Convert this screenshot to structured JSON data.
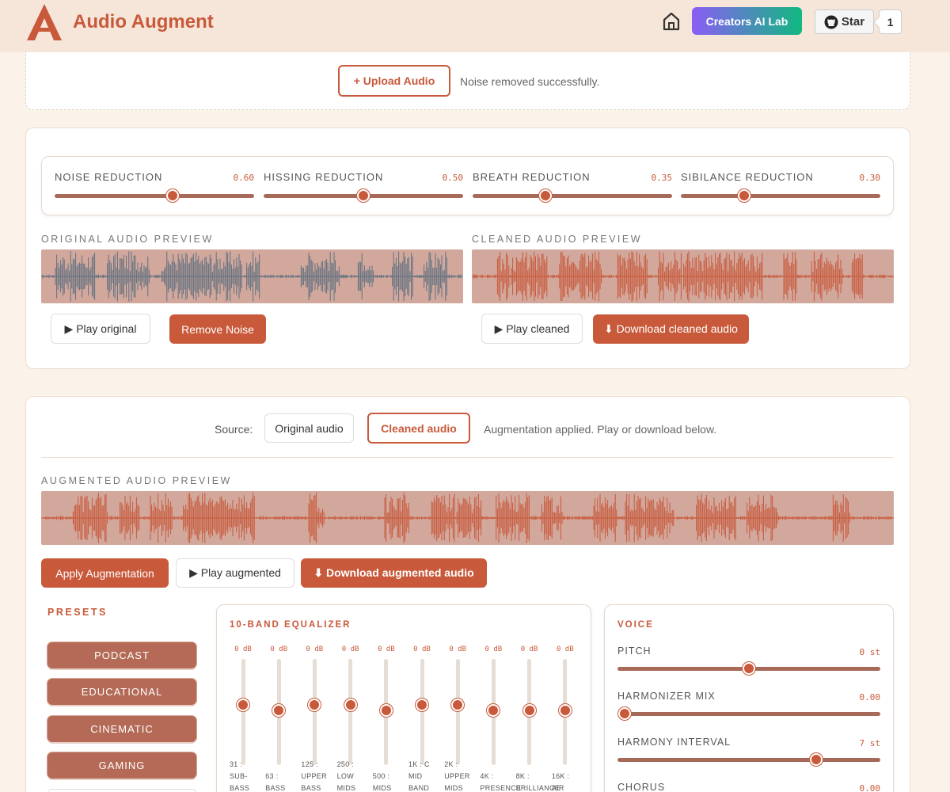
{
  "header": {
    "brand": "Audio Augment",
    "lab_button": "Creators AI Lab",
    "star_button": "Star",
    "star_count": "1"
  },
  "upload": {
    "button": "+ Upload Audio",
    "status": "Noise removed successfully."
  },
  "noise_panel": {
    "sliders": [
      {
        "label": "NOISE REDUCTION",
        "value": "0.60",
        "fraction": 0.6
      },
      {
        "label": "HISSING REDUCTION",
        "value": "0.50",
        "fraction": 0.5
      },
      {
        "label": "BREATH REDUCTION",
        "value": "0.35",
        "fraction": 0.35
      },
      {
        "label": "SIBILANCE REDUCTION",
        "value": "0.30",
        "fraction": 0.3
      }
    ],
    "original_label": "ORIGINAL AUDIO PREVIEW",
    "cleaned_label": "CLEANED AUDIO PREVIEW",
    "play_original": "▶ Play original",
    "remove_noise": "Remove Noise",
    "play_cleaned": "▶ Play cleaned",
    "download_cleaned": "⬇ Download cleaned audio"
  },
  "augment_panel": {
    "source_label": "Source:",
    "source_options": [
      "Original audio",
      "Cleaned audio"
    ],
    "source_selected": "Cleaned audio",
    "status": "Augmentation applied. Play or download below.",
    "augmented_label": "AUGMENTED AUDIO PREVIEW",
    "apply_button": "Apply Augmentation",
    "play_augmented": "▶ Play augmented",
    "download_augmented": "⬇ Download augmented audio"
  },
  "presets": {
    "title": "PRESETS",
    "items": [
      "PODCAST",
      "EDUCATIONAL",
      "CINEMATIC",
      "GAMING"
    ]
  },
  "equalizer": {
    "title": "10-BAND EQUALIZER",
    "bands": [
      {
        "db": "0 dB",
        "label": [
          "31 :",
          "SUB-",
          "BASS"
        ]
      },
      {
        "db": "0 dB",
        "label": [
          "",
          "63 :",
          "BASS"
        ]
      },
      {
        "db": "0 dB",
        "label": [
          "125 :",
          "UPPER",
          "BASS"
        ]
      },
      {
        "db": "0 dB",
        "label": [
          "250 :",
          "LOW",
          "MIDS"
        ]
      },
      {
        "db": "0 dB",
        "label": [
          "",
          "500 :",
          "MIDS"
        ]
      },
      {
        "db": "0 dB",
        "label": [
          "1K : C",
          "MID",
          "BAND"
        ]
      },
      {
        "db": "0 dB",
        "label": [
          "2K :",
          "UPPER",
          "MIDS"
        ]
      },
      {
        "db": "0 dB",
        "label": [
          "",
          "4K :",
          "PRESENCE"
        ]
      },
      {
        "db": "0 dB",
        "label": [
          "",
          "8K :",
          "BRILLIANCE"
        ]
      },
      {
        "db": "0 dB",
        "label": [
          "",
          "16K :",
          "AIR"
        ]
      }
    ]
  },
  "voice": {
    "title": "VOICE",
    "controls": [
      {
        "label": "PITCH",
        "value": "0 st",
        "fraction": 0.5
      },
      {
        "label": "HARMONIZER MIX",
        "value": "0.00",
        "fraction": 0.0
      },
      {
        "label": "HARMONY INTERVAL",
        "value": "7 st",
        "fraction": 0.77
      },
      {
        "label": "CHORUS",
        "value": "0.00",
        "fraction": 0.0
      }
    ]
  },
  "colors": {
    "accent": "#c8593a",
    "wave_original": "#5f7080",
    "wave_processed": "#c8593a",
    "wave_background": "#d2a89d"
  }
}
